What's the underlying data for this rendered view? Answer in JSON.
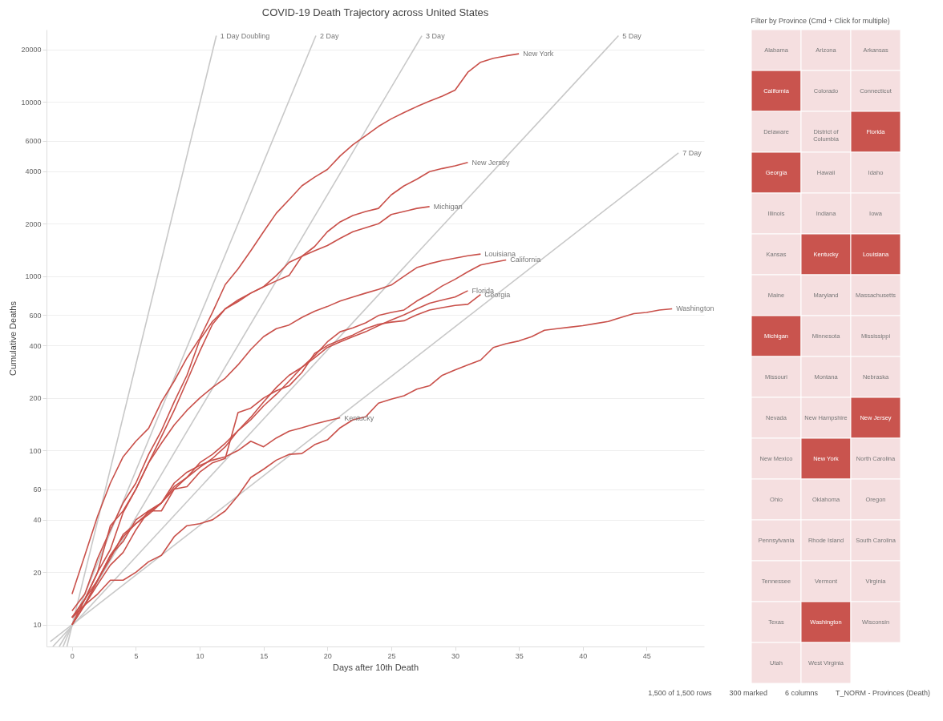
{
  "chart_data": [
    {
      "type": "line",
      "title": "COVID-19 Death Trajectory across United States",
      "xlabel": "Days after 10th Death",
      "ylabel": "Cumulative Deaths",
      "log": "y",
      "grid": "y",
      "xlim": [
        -2,
        49.5
      ],
      "xticks": [
        0,
        5,
        10,
        15,
        20,
        25,
        30,
        35,
        40,
        45
      ],
      "ylim": [
        7.5,
        26000
      ],
      "yticks": [
        10,
        20,
        40,
        60,
        100,
        200,
        400,
        600,
        1000,
        2000,
        4000,
        6000,
        10000,
        20000
      ],
      "series": [
        {
          "name": "1 Day Doubling",
          "color": "#c8c8c8",
          "x": [
            -0.4,
            11.3
          ],
          "values": [
            7.5,
            24000
          ]
        },
        {
          "name": "2 Day",
          "color": "#c8c8c8",
          "x": [
            -0.7,
            19.1
          ],
          "values": [
            7.5,
            24000
          ]
        },
        {
          "name": "3 Day",
          "color": "#c8c8c8",
          "x": [
            -1.0,
            27.4
          ],
          "values": [
            7.5,
            24000
          ]
        },
        {
          "name": "5 Day",
          "color": "#c8c8c8",
          "x": [
            -1.5,
            42.8
          ],
          "values": [
            7.5,
            24000
          ]
        },
        {
          "name": "7 Day",
          "color": "#c8c8c8",
          "x": [
            -1.7,
            47.5
          ],
          "values": [
            8,
            5100
          ]
        },
        {
          "name": "New York",
          "color": "#c9504a",
          "x": [
            0,
            1,
            2,
            3,
            4,
            5,
            6,
            7,
            8,
            9,
            10,
            11,
            12,
            13,
            14,
            15,
            16,
            17,
            18,
            19,
            20,
            21,
            22,
            23,
            24,
            25,
            26,
            27,
            28,
            29,
            30,
            31,
            32,
            33,
            34,
            35
          ],
          "values": [
            15,
            25,
            42,
            65,
            92,
            113,
            134,
            190,
            250,
            340,
            440,
            620,
            895,
            1100,
            1400,
            1800,
            2300,
            2750,
            3300,
            3700,
            4100,
            4900,
            5680,
            6400,
            7240,
            8000,
            8700,
            9400,
            10100,
            10800,
            11700,
            14800,
            16900,
            17800,
            18400,
            18900
          ]
        },
        {
          "name": "New Jersey",
          "color": "#c9504a",
          "x": [
            0,
            1,
            2,
            3,
            4,
            5,
            6,
            7,
            8,
            9,
            10,
            11,
            12,
            13,
            14,
            15,
            16,
            17,
            18,
            19,
            20,
            21,
            22,
            23,
            24,
            25,
            26,
            27,
            28,
            29,
            30,
            31
          ],
          "values": [
            11,
            14,
            20,
            27,
            44,
            60,
            85,
            120,
            170,
            250,
            370,
            530,
            650,
            730,
            800,
            870,
            940,
            1010,
            1300,
            1480,
            1800,
            2050,
            2230,
            2350,
            2450,
            2930,
            3300,
            3600,
            3980,
            4150,
            4300,
            4500
          ]
        },
        {
          "name": "Michigan",
          "color": "#c9504a",
          "x": [
            0,
            1,
            2,
            3,
            4,
            5,
            6,
            7,
            8,
            9,
            10,
            11,
            12,
            13,
            14,
            15,
            16,
            17,
            18,
            19,
            20,
            21,
            22,
            23,
            24,
            25,
            26,
            27,
            28
          ],
          "values": [
            12,
            15,
            24,
            35,
            50,
            65,
            95,
            130,
            190,
            270,
            430,
            550,
            650,
            715,
            800,
            870,
            1010,
            1200,
            1300,
            1400,
            1500,
            1650,
            1800,
            1900,
            2000,
            2260,
            2350,
            2450,
            2510
          ]
        },
        {
          "name": "Louisiana",
          "color": "#c9504a",
          "x": [
            0,
            1,
            2,
            3,
            4,
            5,
            6,
            7,
            8,
            9,
            10,
            11,
            12,
            13,
            14,
            15,
            16,
            17,
            18,
            19,
            20,
            21,
            22,
            23,
            24,
            25,
            26,
            27,
            28,
            29,
            30,
            31,
            32
          ],
          "values": [
            10,
            14,
            20,
            37,
            45,
            60,
            85,
            110,
            140,
            170,
            200,
            230,
            260,
            310,
            380,
            450,
            500,
            525,
            580,
            630,
            670,
            720,
            760,
            800,
            840,
            890,
            1000,
            1120,
            1180,
            1230,
            1270,
            1310,
            1340
          ]
        },
        {
          "name": "California",
          "color": "#c9504a",
          "x": [
            0,
            1,
            2,
            3,
            4,
            5,
            6,
            7,
            8,
            9,
            10,
            11,
            12,
            13,
            14,
            15,
            16,
            17,
            18,
            19,
            20,
            21,
            22,
            23,
            24,
            25,
            26,
            27,
            28,
            29,
            30,
            31,
            32,
            33,
            34
          ],
          "values": [
            11,
            13,
            17,
            22,
            26,
            35,
            45,
            50,
            60,
            70,
            85,
            95,
            110,
            130,
            150,
            180,
            210,
            250,
            300,
            350,
            420,
            480,
            505,
            540,
            595,
            620,
            640,
            720,
            790,
            880,
            960,
            1060,
            1160,
            1200,
            1240
          ]
        },
        {
          "name": "Florida",
          "color": "#c9504a",
          "x": [
            0,
            1,
            2,
            3,
            4,
            5,
            6,
            7,
            8,
            9,
            10,
            11,
            12,
            13,
            14,
            15,
            16,
            17,
            18,
            19,
            20,
            21,
            22,
            23,
            24,
            25,
            26,
            27,
            28,
            29,
            30,
            31
          ],
          "values": [
            10,
            13,
            18,
            24,
            33,
            38,
            43,
            50,
            62,
            70,
            80,
            90,
            105,
            130,
            155,
            190,
            230,
            270,
            300,
            340,
            390,
            420,
            450,
            480,
            520,
            560,
            600,
            650,
            700,
            730,
            760,
            826
          ]
        },
        {
          "name": "Georgia",
          "color": "#c9504a",
          "x": [
            0,
            1,
            2,
            3,
            4,
            5,
            6,
            7,
            8,
            9,
            10,
            11,
            12,
            13,
            14,
            15,
            16,
            17,
            18,
            19,
            20,
            21,
            22,
            23,
            24,
            25,
            26,
            27,
            28,
            29,
            30,
            31,
            32
          ],
          "values": [
            11,
            14,
            18,
            25,
            30,
            40,
            45,
            45,
            60,
            62,
            75,
            85,
            90,
            165,
            175,
            200,
            220,
            235,
            280,
            360,
            400,
            430,
            460,
            500,
            530,
            545,
            555,
            600,
            640,
            660,
            680,
            690,
            785
          ]
        },
        {
          "name": "Washington",
          "color": "#c9504a",
          "x": [
            0,
            1,
            2,
            3,
            4,
            5,
            6,
            7,
            8,
            9,
            10,
            11,
            12,
            13,
            14,
            15,
            16,
            17,
            18,
            19,
            20,
            21,
            22,
            23,
            24,
            25,
            26,
            27,
            28,
            29,
            30,
            31,
            32,
            33,
            34,
            35,
            36,
            37,
            38,
            39,
            40,
            41,
            42,
            43,
            44,
            45,
            46,
            47
          ],
          "values": [
            10,
            13,
            15,
            18,
            18,
            20,
            23,
            25,
            32,
            37,
            38,
            40,
            45,
            55,
            70,
            78,
            88,
            95,
            96,
            108,
            115,
            135,
            150,
            156,
            187,
            197,
            206,
            225,
            235,
            270,
            290,
            310,
            330,
            390,
            410,
            425,
            450,
            490,
            500,
            510,
            520,
            535,
            550,
            580,
            610,
            620,
            640,
            650
          ]
        },
        {
          "name": "Kentucky",
          "color": "#c9504a",
          "x": [
            0,
            1,
            2,
            3,
            4,
            5,
            6,
            7,
            8,
            9,
            10,
            11,
            12,
            13,
            14,
            15,
            16,
            17,
            18,
            19,
            20,
            21
          ],
          "values": [
            11,
            13,
            18,
            25,
            32,
            38,
            44,
            50,
            65,
            75,
            82,
            88,
            92,
            100,
            113,
            105,
            118,
            129,
            135,
            142,
            148,
            154
          ]
        }
      ]
    },
    {
      "type": "other",
      "title": "Filter by Province (Cmd + Click for multiple)",
      "categories": [
        "Alabama",
        "Arizona",
        "Arkansas",
        "California",
        "Colorado",
        "Connecticut",
        "Delaware",
        "District of Columbia",
        "Florida",
        "Georgia",
        "Hawaii",
        "Idaho",
        "Illinois",
        "Indiana",
        "Iowa",
        "Kansas",
        "Kentucky",
        "Louisiana",
        "Maine",
        "Maryland",
        "Massachusetts",
        "Michigan",
        "Minnesota",
        "Mississippi",
        "Missouri",
        "Montana",
        "Nebraska",
        "Nevada",
        "New Hampshire",
        "New Jersey",
        "New Mexico",
        "New York",
        "North Carolina",
        "Ohio",
        "Oklahoma",
        "Oregon",
        "Pennsylvania",
        "Rhode Island",
        "South Carolina",
        "Tennessee",
        "Vermont",
        "Virginia",
        "Texas",
        "Washington",
        "Wisconsin",
        "Utah",
        "West Virginia"
      ],
      "colors": [
        "#f5dfe0",
        "#f5dfe0",
        "#f5dfe0",
        "#c9544e",
        "#f5dfe0",
        "#f5dfe0",
        "#f5dfe0",
        "#f5dfe0",
        "#c9544e",
        "#c9544e",
        "#f5dfe0",
        "#f5dfe0",
        "#f5dfe0",
        "#f5dfe0",
        "#f5dfe0",
        "#f5dfe0",
        "#c9544e",
        "#c9544e",
        "#f5dfe0",
        "#f5dfe0",
        "#f5dfe0",
        "#c9544e",
        "#f5dfe0",
        "#f5dfe0",
        "#f5dfe0",
        "#f5dfe0",
        "#f5dfe0",
        "#f5dfe0",
        "#f5dfe0",
        "#c9544e",
        "#f5dfe0",
        "#c9544e",
        "#f5dfe0",
        "#f5dfe0",
        "#f5dfe0",
        "#f5dfe0",
        "#f5dfe0",
        "#f5dfe0",
        "#f5dfe0",
        "#f5dfe0",
        "#f5dfe0",
        "#f5dfe0",
        "#f5dfe0",
        "#c9544e",
        "#f5dfe0",
        "#f5dfe0",
        "#f5dfe0"
      ],
      "annotations": [
        "1,500 of 1,500 rows",
        "300 marked",
        "6 columns",
        "T_NORM - Provinces (Death)"
      ]
    }
  ]
}
